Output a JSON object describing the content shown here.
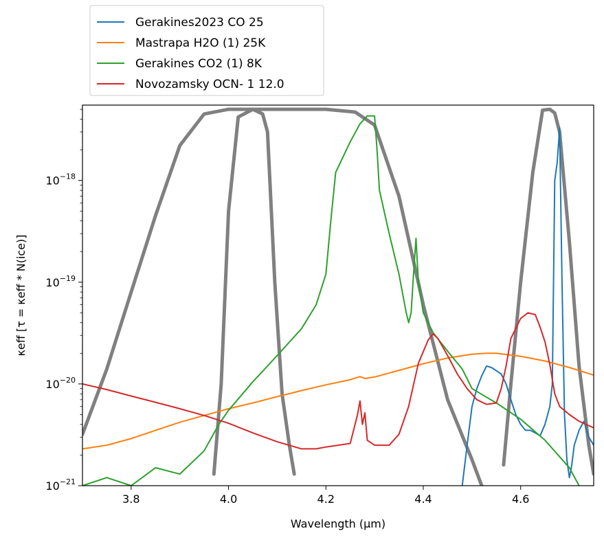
{
  "chart_data": {
    "type": "line",
    "xlabel": "Wavelength (μm)",
    "ylabel": "κeff [τ = κeff * N(ice)]",
    "xlim": [
      3.7,
      4.75
    ],
    "ylim": [
      1e-21,
      5.5e-18
    ],
    "yscale": "log",
    "x_ticks": [
      3.8,
      4.0,
      4.2,
      4.4,
      4.6
    ],
    "x_tick_labels": [
      "3.8",
      "4.0",
      "4.2",
      "4.4",
      "4.6"
    ],
    "y_ticks": [
      1e-21,
      1e-20,
      1e-19,
      1e-18
    ],
    "y_tick_labels": [
      {
        "base": "10",
        "exp": "−21"
      },
      {
        "base": "10",
        "exp": "−20"
      },
      {
        "base": "10",
        "exp": "−19"
      },
      {
        "base": "10",
        "exp": "−18"
      }
    ],
    "grid": false,
    "legend_position": "above plot, top-left",
    "series": [
      {
        "name": "Gerakines2023 CO 25",
        "color": "#1f77b4",
        "points": [
          [
            4.48,
            1e-21
          ],
          [
            4.49,
            2.5e-21
          ],
          [
            4.5,
            6e-21
          ],
          [
            4.51,
            9e-21
          ],
          [
            4.52,
            1.2e-20
          ],
          [
            4.53,
            1.5e-20
          ],
          [
            4.54,
            1.45e-20
          ],
          [
            4.55,
            1.35e-20
          ],
          [
            4.56,
            1.25e-20
          ],
          [
            4.57,
            1e-20
          ],
          [
            4.58,
            7e-21
          ],
          [
            4.59,
            5e-21
          ],
          [
            4.6,
            4e-21
          ],
          [
            4.61,
            3.5e-21
          ],
          [
            4.62,
            3.5e-21
          ],
          [
            4.63,
            3.3e-21
          ],
          [
            4.64,
            3.1e-21
          ],
          [
            4.65,
            4e-21
          ],
          [
            4.66,
            6e-21
          ],
          [
            4.665,
            1e-20
          ],
          [
            4.67,
            1e-18
          ],
          [
            4.675,
            1.5e-18
          ],
          [
            4.68,
            3.3e-18
          ],
          [
            4.685,
            1e-19
          ],
          [
            4.69,
            5e-21
          ],
          [
            4.695,
            1.8e-21
          ],
          [
            4.7,
            1.2e-21
          ],
          [
            4.705,
            1.6e-21
          ],
          [
            4.71,
            2.5e-21
          ],
          [
            4.72,
            3.5e-21
          ],
          [
            4.73,
            4.3e-21
          ],
          [
            4.74,
            3e-21
          ],
          [
            4.75,
            2.5e-21
          ]
        ]
      },
      {
        "name": "Mastrapa H2O (1) 25K",
        "color": "#ff7f0e",
        "points": [
          [
            3.7,
            2.3e-21
          ],
          [
            3.75,
            2.5e-21
          ],
          [
            3.8,
            2.9e-21
          ],
          [
            3.85,
            3.5e-21
          ],
          [
            3.9,
            4.2e-21
          ],
          [
            3.95,
            4.9e-21
          ],
          [
            4.0,
            5.7e-21
          ],
          [
            4.05,
            6.5e-21
          ],
          [
            4.1,
            7.5e-21
          ],
          [
            4.15,
            8.6e-21
          ],
          [
            4.2,
            9.8e-21
          ],
          [
            4.25,
            1.1e-20
          ],
          [
            4.27,
            1.18e-20
          ],
          [
            4.28,
            1.13e-20
          ],
          [
            4.3,
            1.17e-20
          ],
          [
            4.35,
            1.36e-20
          ],
          [
            4.4,
            1.58e-20
          ],
          [
            4.45,
            1.8e-20
          ],
          [
            4.5,
            1.96e-20
          ],
          [
            4.53,
            2e-20
          ],
          [
            4.55,
            2e-20
          ],
          [
            4.6,
            1.87e-20
          ],
          [
            4.65,
            1.68e-20
          ],
          [
            4.7,
            1.45e-20
          ],
          [
            4.75,
            1.22e-20
          ]
        ]
      },
      {
        "name": "Gerakines CO2 (1) 8K",
        "color": "#2ca02c",
        "points": [
          [
            3.7,
            1e-21
          ],
          [
            3.75,
            1.2e-21
          ],
          [
            3.8,
            1e-21
          ],
          [
            3.85,
            1.5e-21
          ],
          [
            3.9,
            1.3e-21
          ],
          [
            3.95,
            2.2e-21
          ],
          [
            3.98,
            4e-21
          ],
          [
            4.0,
            5.5e-21
          ],
          [
            4.05,
            1.05e-20
          ],
          [
            4.1,
            1.9e-20
          ],
          [
            4.15,
            3.5e-20
          ],
          [
            4.18,
            6e-20
          ],
          [
            4.2,
            1.2e-19
          ],
          [
            4.21,
            4e-19
          ],
          [
            4.22,
            1.2e-18
          ],
          [
            4.25,
            2.4e-18
          ],
          [
            4.27,
            3.6e-18
          ],
          [
            4.285,
            4.3e-18
          ],
          [
            4.3,
            4.3e-18
          ],
          [
            4.305,
            2e-18
          ],
          [
            4.31,
            8e-19
          ],
          [
            4.33,
            3e-19
          ],
          [
            4.35,
            1.2e-19
          ],
          [
            4.365,
            5e-20
          ],
          [
            4.37,
            4e-20
          ],
          [
            4.375,
            5e-20
          ],
          [
            4.38,
            1.2e-19
          ],
          [
            4.385,
            2.7e-19
          ],
          [
            4.39,
            1e-19
          ],
          [
            4.4,
            5e-20
          ],
          [
            4.42,
            3.2e-20
          ],
          [
            4.45,
            2.1e-20
          ],
          [
            4.48,
            1.4e-20
          ],
          [
            4.5,
            9e-21
          ],
          [
            4.55,
            6.5e-21
          ],
          [
            4.6,
            4.5e-21
          ],
          [
            4.65,
            2.8e-21
          ],
          [
            4.7,
            1.5e-21
          ],
          [
            4.72,
            1e-21
          ]
        ]
      },
      {
        "name": "Novozamsky OCN- 1 12.0",
        "color": "#d62728",
        "points": [
          [
            3.7,
            1e-20
          ],
          [
            3.75,
            8.8e-21
          ],
          [
            3.8,
            7.6e-21
          ],
          [
            3.85,
            6.6e-21
          ],
          [
            3.9,
            5.7e-21
          ],
          [
            3.95,
            4.9e-21
          ],
          [
            4.0,
            4.1e-21
          ],
          [
            4.05,
            3.3e-21
          ],
          [
            4.1,
            2.7e-21
          ],
          [
            4.15,
            2.3e-21
          ],
          [
            4.18,
            2.3e-21
          ],
          [
            4.2,
            2.4e-21
          ],
          [
            4.25,
            2.6e-21
          ],
          [
            4.265,
            5e-21
          ],
          [
            4.27,
            6.8e-21
          ],
          [
            4.275,
            4e-21
          ],
          [
            4.28,
            5.2e-21
          ],
          [
            4.285,
            2.8e-21
          ],
          [
            4.3,
            2.5e-21
          ],
          [
            4.33,
            2.5e-21
          ],
          [
            4.35,
            3.2e-21
          ],
          [
            4.37,
            6e-21
          ],
          [
            4.39,
            1.6e-20
          ],
          [
            4.41,
            2.7e-20
          ],
          [
            4.42,
            3.1e-20
          ],
          [
            4.43,
            2.8e-20
          ],
          [
            4.45,
            1.9e-20
          ],
          [
            4.47,
            1.25e-20
          ],
          [
            4.49,
            9e-21
          ],
          [
            4.51,
            7e-21
          ],
          [
            4.53,
            6.3e-21
          ],
          [
            4.55,
            6.5e-21
          ],
          [
            4.56,
            9e-21
          ],
          [
            4.57,
            1.5e-20
          ],
          [
            4.58,
            2.8e-20
          ],
          [
            4.6,
            4.4e-20
          ],
          [
            4.615,
            5e-20
          ],
          [
            4.63,
            4.8e-20
          ],
          [
            4.64,
            3.6e-20
          ],
          [
            4.65,
            2.6e-20
          ],
          [
            4.66,
            1.55e-20
          ],
          [
            4.67,
            8e-21
          ],
          [
            4.68,
            6e-21
          ],
          [
            4.7,
            5e-21
          ],
          [
            4.72,
            4.3e-21
          ],
          [
            4.75,
            3.7e-21
          ]
        ]
      },
      {
        "name": "",
        "color": "#808080",
        "points": [
          [
            3.7,
            3.2e-21
          ],
          [
            3.75,
            1.4e-20
          ],
          [
            3.8,
            8e-20
          ],
          [
            3.85,
            4.5e-19
          ],
          [
            3.9,
            2.2e-18
          ],
          [
            3.95,
            4.5e-18
          ],
          [
            4.0,
            5e-18
          ],
          [
            4.2,
            5e-18
          ],
          [
            4.26,
            4.7e-18
          ],
          [
            4.3,
            3.5e-18
          ],
          [
            4.35,
            7e-19
          ],
          [
            4.4,
            6e-20
          ],
          [
            4.45,
            7e-21
          ],
          [
            4.5,
            1.8e-21
          ],
          [
            4.52,
            1e-21
          ]
        ]
      },
      {
        "name": "",
        "color": "#808080",
        "points": [
          [
            3.97,
            1.3e-21
          ],
          [
            3.985,
            1e-20
          ],
          [
            4.0,
            5e-19
          ],
          [
            4.02,
            4.2e-18
          ],
          [
            4.05,
            5e-18
          ],
          [
            4.07,
            4.5e-18
          ],
          [
            4.08,
            3e-18
          ],
          [
            4.095,
            1e-19
          ],
          [
            4.11,
            8e-21
          ],
          [
            4.125,
            2.5e-21
          ],
          [
            4.135,
            1.3e-21
          ]
        ]
      },
      {
        "name": "",
        "color": "#808080",
        "points": [
          [
            4.565,
            1.6e-21
          ],
          [
            4.58,
            1e-20
          ],
          [
            4.6,
            1e-19
          ],
          [
            4.625,
            1.2e-18
          ],
          [
            4.645,
            4.9e-18
          ],
          [
            4.66,
            5e-18
          ],
          [
            4.67,
            4.6e-18
          ],
          [
            4.68,
            3e-18
          ],
          [
            4.7,
            2.5e-19
          ],
          [
            4.72,
            1.5e-20
          ],
          [
            4.74,
            2.5e-21
          ],
          [
            4.75,
            1.3e-21
          ]
        ]
      }
    ]
  }
}
